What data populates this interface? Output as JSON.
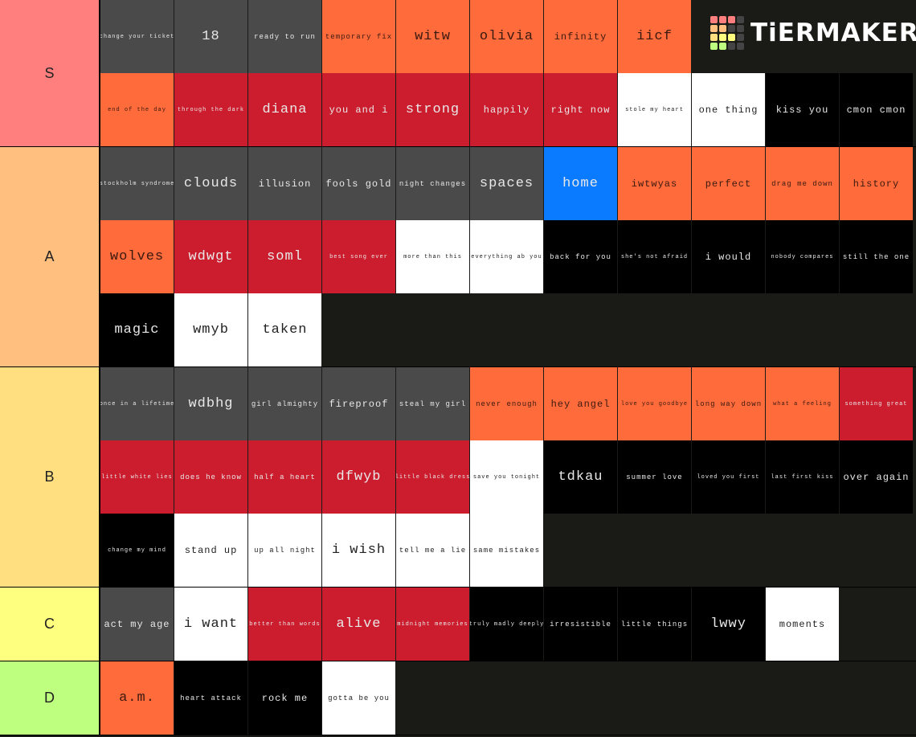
{
  "logo": "TiERMAKER",
  "tiers": [
    {
      "label": "S",
      "color": "#ff7f7f",
      "items": [
        {
          "text": "change your ticket",
          "color": "#4a4a4a"
        },
        {
          "text": "18",
          "color": "#4a4a4a"
        },
        {
          "text": "ready to run",
          "color": "#4a4a4a"
        },
        {
          "text": "temporary fix",
          "color": "#ff6b3b"
        },
        {
          "text": "witw",
          "color": "#ff6b3b"
        },
        {
          "text": "olivia",
          "color": "#ff6b3b"
        },
        {
          "text": "infinity",
          "color": "#ff6b3b"
        },
        {
          "text": "iicf",
          "color": "#ff6b3b"
        },
        {
          "text": "end of the day",
          "color": "#ff6b3b"
        },
        {
          "text": "through the dark",
          "color": "#cc1d2e"
        },
        {
          "text": "diana",
          "color": "#cc1d2e"
        },
        {
          "text": "you and i",
          "color": "#cc1d2e"
        },
        {
          "text": "strong",
          "color": "#cc1d2e"
        },
        {
          "text": "happily",
          "color": "#cc1d2e"
        },
        {
          "text": "right now",
          "color": "#cc1d2e"
        },
        {
          "text": "stole my heart",
          "color": "#ffffff"
        },
        {
          "text": "one thing",
          "color": "#ffffff"
        },
        {
          "text": "kiss you",
          "color": "#000000"
        },
        {
          "text": "cmon cmon",
          "color": "#000000"
        }
      ]
    },
    {
      "label": "A",
      "color": "#ffbf7f",
      "items": [
        {
          "text": "stockholm syndrome",
          "color": "#4a4a4a"
        },
        {
          "text": "clouds",
          "color": "#4a4a4a"
        },
        {
          "text": "illusion",
          "color": "#4a4a4a"
        },
        {
          "text": "fools gold",
          "color": "#4a4a4a"
        },
        {
          "text": "night changes",
          "color": "#4a4a4a"
        },
        {
          "text": "spaces",
          "color": "#4a4a4a"
        },
        {
          "text": "home",
          "color": "#0a7aff"
        },
        {
          "text": "iwtwyas",
          "color": "#ff6b3b"
        },
        {
          "text": "perfect",
          "color": "#ff6b3b"
        },
        {
          "text": "drag me down",
          "color": "#ff6b3b"
        },
        {
          "text": "history",
          "color": "#ff6b3b"
        },
        {
          "text": "wolves",
          "color": "#ff6b3b"
        },
        {
          "text": "wdwgt",
          "color": "#cc1d2e"
        },
        {
          "text": "soml",
          "color": "#cc1d2e"
        },
        {
          "text": "best song ever",
          "color": "#cc1d2e"
        },
        {
          "text": "more than this",
          "color": "#ffffff"
        },
        {
          "text": "everything ab you",
          "color": "#ffffff"
        },
        {
          "text": "back for you",
          "color": "#000000"
        },
        {
          "text": "she's not afraid",
          "color": "#000000"
        },
        {
          "text": "i would",
          "color": "#000000"
        },
        {
          "text": "nobody compares",
          "color": "#000000"
        },
        {
          "text": "still the one",
          "color": "#000000"
        },
        {
          "text": "magic",
          "color": "#000000"
        },
        {
          "text": "wmyb",
          "color": "#ffffff"
        },
        {
          "text": "taken",
          "color": "#ffffff"
        }
      ]
    },
    {
      "label": "B",
      "color": "#ffdf7f",
      "items": [
        {
          "text": "once in a lifetime",
          "color": "#4a4a4a"
        },
        {
          "text": "wdbhg",
          "color": "#4a4a4a"
        },
        {
          "text": "girl almighty",
          "color": "#4a4a4a"
        },
        {
          "text": "fireproof",
          "color": "#4a4a4a"
        },
        {
          "text": "steal my girl",
          "color": "#4a4a4a"
        },
        {
          "text": "never enough",
          "color": "#ff6b3b"
        },
        {
          "text": "hey angel",
          "color": "#ff6b3b"
        },
        {
          "text": "love you goodbye",
          "color": "#ff6b3b"
        },
        {
          "text": "long way down",
          "color": "#ff6b3b"
        },
        {
          "text": "what a feeling",
          "color": "#ff6b3b"
        },
        {
          "text": "something great",
          "color": "#cc1d2e"
        },
        {
          "text": "little white lies",
          "color": "#cc1d2e"
        },
        {
          "text": "does he know",
          "color": "#cc1d2e"
        },
        {
          "text": "half a heart",
          "color": "#cc1d2e"
        },
        {
          "text": "dfwyb",
          "color": "#cc1d2e"
        },
        {
          "text": "little black dress",
          "color": "#cc1d2e"
        },
        {
          "text": "save you tonight",
          "color": "#ffffff"
        },
        {
          "text": "tdkau",
          "color": "#000000"
        },
        {
          "text": "summer love",
          "color": "#000000"
        },
        {
          "text": "loved you first",
          "color": "#000000"
        },
        {
          "text": "last first kiss",
          "color": "#000000"
        },
        {
          "text": "over again",
          "color": "#000000"
        },
        {
          "text": "change my mind",
          "color": "#000000"
        },
        {
          "text": "stand up",
          "color": "#ffffff"
        },
        {
          "text": "up all night",
          "color": "#ffffff"
        },
        {
          "text": "i wish",
          "color": "#ffffff"
        },
        {
          "text": "tell me a lie",
          "color": "#ffffff"
        },
        {
          "text": "same mistakes",
          "color": "#ffffff"
        }
      ]
    },
    {
      "label": "C",
      "color": "#ffff7f",
      "items": [
        {
          "text": "act my age",
          "color": "#4a4a4a"
        },
        {
          "text": "i want",
          "color": "#ffffff"
        },
        {
          "text": "better than words",
          "color": "#cc1d2e"
        },
        {
          "text": "alive",
          "color": "#cc1d2e"
        },
        {
          "text": "midnight memories",
          "color": "#cc1d2e"
        },
        {
          "text": "truly madly deeply",
          "color": "#000000"
        },
        {
          "text": "irresistible",
          "color": "#000000"
        },
        {
          "text": "little things",
          "color": "#000000"
        },
        {
          "text": "lwwy",
          "color": "#000000"
        },
        {
          "text": "moments",
          "color": "#ffffff"
        }
      ]
    },
    {
      "label": "D",
      "color": "#bfff7f",
      "items": [
        {
          "text": "a.m.",
          "color": "#ff6b3b"
        },
        {
          "text": "heart attack",
          "color": "#000000"
        },
        {
          "text": "rock me",
          "color": "#000000"
        },
        {
          "text": "gotta be you",
          "color": "#ffffff"
        }
      ]
    }
  ]
}
